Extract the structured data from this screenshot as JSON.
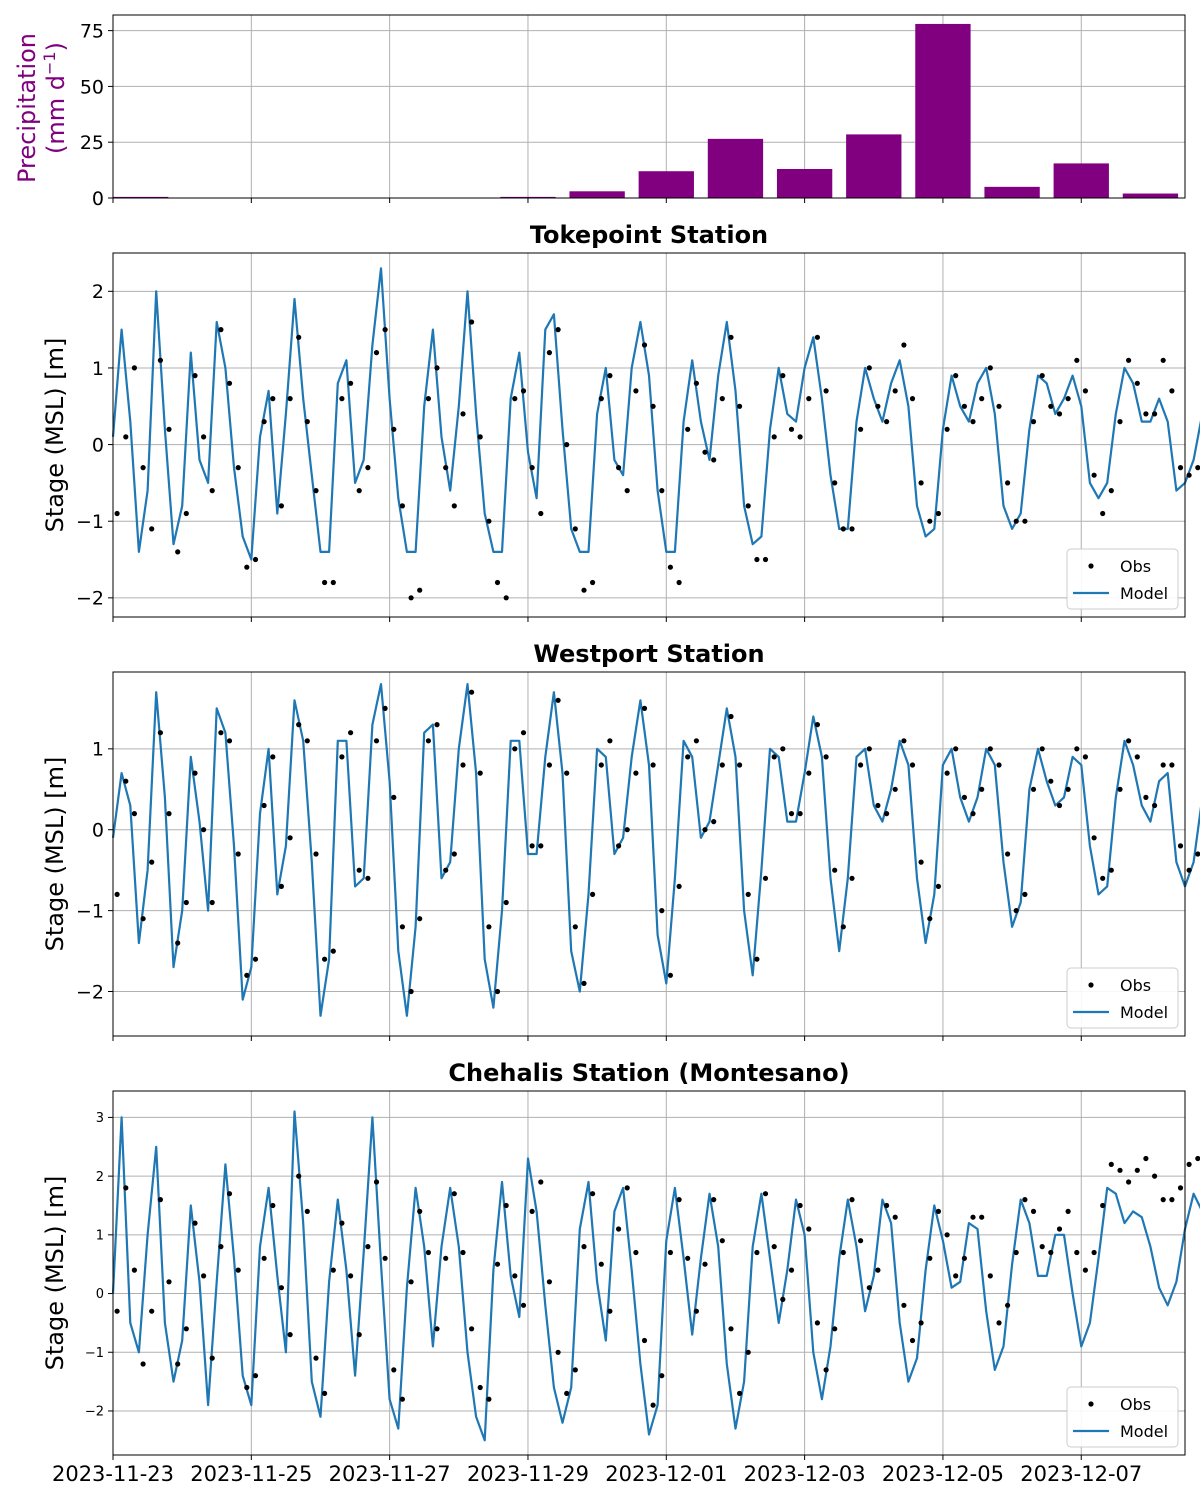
{
  "x_ticks": [
    "2023-11-23",
    "2023-11-25",
    "2023-11-27",
    "2023-11-29",
    "2023-12-01",
    "2023-12-03",
    "2023-12-05",
    "2023-12-07"
  ],
  "colors": {
    "precip": "#800080",
    "model": "#1f77b4",
    "obs": "#000000",
    "grid": "#b0b0b0"
  },
  "chart_data": [
    {
      "type": "bar",
      "title": "",
      "ylabel_main": "Precipitation",
      "ylabel_units": "(mm d",
      "ylabel_exp": "−1",
      "ylabel_close": ")",
      "ylim": [
        0,
        82
      ],
      "yticks": [
        0,
        25,
        50,
        75
      ],
      "ytick_labels": [
        "0",
        "25",
        "50",
        "75"
      ],
      "categories": [
        "2023-11-23",
        "2023-11-24",
        "2023-11-25",
        "2023-11-26",
        "2023-11-27",
        "2023-11-28",
        "2023-11-29",
        "2023-11-30",
        "2023-12-01",
        "2023-12-02",
        "2023-12-03",
        "2023-12-04",
        "2023-12-05",
        "2023-12-06",
        "2023-12-07",
        "2023-12-08"
      ],
      "values": [
        0.5,
        0,
        0,
        0,
        0,
        0,
        0.5,
        3,
        12,
        26.5,
        13,
        28.5,
        78,
        5,
        15.5,
        2
      ]
    },
    {
      "type": "line",
      "title": "Tokepoint Station",
      "ylabel": "Stage (MSL) [m]",
      "ylim": [
        -2.25,
        2.5
      ],
      "yticks": [
        -2,
        -1,
        0,
        1,
        2
      ],
      "ytick_labels": [
        "−2",
        "−1",
        "0",
        "1",
        "2"
      ],
      "legend": [
        "Obs",
        "Model"
      ],
      "legend_position": "lower right",
      "x_start": "2023-11-23 00:00",
      "x_step_hours": 3,
      "model": [
        0.1,
        1.5,
        0.3,
        -1.4,
        -0.6,
        2.0,
        0.2,
        -1.3,
        -0.8,
        1.2,
        -0.2,
        -0.5,
        1.6,
        1.0,
        -0.3,
        -1.2,
        -1.5,
        0.1,
        0.7,
        -0.9,
        0.4,
        1.9,
        0.6,
        -0.4,
        -1.4,
        -1.4,
        0.8,
        1.1,
        -0.5,
        -0.2,
        1.3,
        2.3,
        0.6,
        -0.7,
        -1.4,
        -1.4,
        0.5,
        1.5,
        0.1,
        -0.6,
        0.5,
        2.0,
        0.4,
        -0.9,
        -1.4,
        -1.4,
        0.6,
        1.2,
        -0.1,
        -0.7,
        1.5,
        1.7,
        0.2,
        -1.1,
        -1.4,
        -1.4,
        0.4,
        1.0,
        -0.2,
        -0.4,
        1.0,
        1.6,
        0.9,
        -0.6,
        -1.4,
        -1.4,
        0.3,
        1.1,
        0.3,
        -0.2,
        0.9,
        1.6,
        0.7,
        -0.8,
        -1.3,
        -1.2,
        0.2,
        1.0,
        0.4,
        0.3,
        1.0,
        1.4,
        0.6,
        -0.4,
        -1.1,
        -1.1,
        0.3,
        1.0,
        0.6,
        0.3,
        0.8,
        1.1,
        0.5,
        -0.8,
        -1.2,
        -1.1,
        0.2,
        0.9,
        0.5,
        0.3,
        0.8,
        1.0,
        0.4,
        -0.8,
        -1.1,
        -0.9,
        0.2,
        0.9,
        0.8,
        0.4,
        0.6,
        0.9,
        0.5,
        -0.5,
        -0.7,
        -0.5,
        0.4,
        1.0,
        0.8,
        0.3,
        0.3,
        0.6,
        0.3,
        -0.6,
        -0.5,
        -0.2,
        0.4,
        1.0,
        0.8,
        0.2,
        0.0,
        0.5,
        0.2,
        -0.5,
        -0.4,
        -0.1,
        0.4,
        1.1,
        0.8,
        0.1,
        0.0,
        0.5,
        0.1,
        -0.4,
        -0.4,
        0.0,
        0.5,
        1.2,
        0.9,
        0.1,
        -0.1,
        0.2,
        0.0,
        -0.6
      ],
      "obs": [
        -0.9,
        0.1,
        1.0,
        -0.3,
        -1.1,
        1.1,
        0.2,
        -1.4,
        -0.9,
        0.9,
        0.1,
        -0.6,
        1.5,
        0.8,
        -0.3,
        -1.6,
        -1.5,
        0.3,
        0.6,
        -0.8,
        0.6,
        1.4,
        0.3,
        -0.6,
        -1.8,
        -1.8,
        0.6,
        0.8,
        -0.6,
        -0.3,
        1.2,
        1.5,
        0.2,
        -0.8,
        -2.0,
        -1.9,
        0.6,
        1.0,
        -0.3,
        -0.8,
        0.4,
        1.6,
        0.1,
        -1.0,
        -1.8,
        -2.0,
        0.6,
        0.7,
        -0.3,
        -0.9,
        1.2,
        1.5,
        0.0,
        -1.1,
        -1.9,
        -1.8,
        0.6,
        0.9,
        -0.3,
        -0.6,
        0.7,
        1.3,
        0.5,
        -0.6,
        -1.6,
        -1.8,
        0.2,
        0.8,
        -0.1,
        -0.2,
        0.6,
        1.4,
        0.5,
        -0.8,
        -1.5,
        -1.5,
        0.1,
        0.9,
        0.2,
        0.1,
        0.6,
        1.4,
        0.7,
        -0.5,
        -1.1,
        -1.1,
        0.2,
        1.0,
        0.5,
        0.3,
        0.7,
        1.3,
        0.6,
        -0.5,
        -1.0,
        -0.9,
        0.2,
        0.9,
        0.5,
        0.3,
        0.6,
        1.0,
        0.5,
        -0.5,
        -1.0,
        -1.0,
        0.3,
        0.9,
        0.5,
        0.4,
        0.6,
        1.1,
        0.7,
        -0.4,
        -0.9,
        -0.6,
        0.3,
        1.1,
        0.8,
        0.4,
        0.4,
        1.1,
        0.7,
        -0.3,
        -0.4,
        -0.3,
        0.4,
        1.1,
        0.8,
        0.4,
        0.3,
        0.9,
        0.5,
        -0.3,
        -0.4,
        0.0,
        0.5,
        1.3,
        1.0,
        0.4,
        0.2,
        0.7,
        0.3,
        -0.2,
        -0.4,
        -0.2,
        0.5,
        1.3,
        1.0,
        0.3,
        0.1,
        0.5,
        0.3,
        -0.3
      ]
    },
    {
      "type": "line",
      "title": "Westport Station",
      "ylabel": "Stage (MSL) [m]",
      "ylim": [
        -2.55,
        1.95
      ],
      "yticks": [
        -2,
        -1,
        0,
        1
      ],
      "ytick_labels": [
        "−2",
        "−1",
        "0",
        "1"
      ],
      "legend": [
        "Obs",
        "Model"
      ],
      "legend_position": "lower right",
      "x_start": "2023-11-23 00:00",
      "x_step_hours": 3,
      "model": [
        -0.1,
        0.7,
        0.3,
        -1.4,
        -0.5,
        1.7,
        0.4,
        -1.7,
        -1.0,
        0.9,
        0.1,
        -1.0,
        1.5,
        1.2,
        -0.2,
        -2.1,
        -1.7,
        0.2,
        1.0,
        -0.8,
        -0.2,
        1.6,
        1.1,
        -0.4,
        -2.3,
        -1.6,
        1.1,
        1.1,
        -0.7,
        -0.6,
        1.3,
        1.8,
        0.6,
        -1.5,
        -2.3,
        -1.2,
        1.2,
        1.3,
        -0.6,
        -0.4,
        1.0,
        1.8,
        0.7,
        -1.6,
        -2.2,
        -1.0,
        1.1,
        1.1,
        -0.3,
        -0.3,
        0.9,
        1.7,
        0.7,
        -1.5,
        -2.0,
        -0.8,
        1.0,
        0.9,
        -0.3,
        -0.1,
        0.9,
        1.6,
        0.8,
        -1.3,
        -1.9,
        -0.6,
        1.1,
        0.9,
        -0.1,
        0.1,
        0.8,
        1.5,
        0.9,
        -1.0,
        -1.8,
        -0.5,
        1.0,
        0.9,
        0.1,
        0.1,
        0.7,
        1.4,
        0.9,
        -0.6,
        -1.5,
        -0.6,
        0.9,
        1.0,
        0.3,
        0.1,
        0.5,
        1.1,
        0.8,
        -0.6,
        -1.4,
        -0.8,
        0.8,
        1.0,
        0.4,
        0.1,
        0.4,
        1.0,
        0.8,
        -0.4,
        -1.2,
        -0.9,
        0.5,
        1.0,
        0.6,
        0.3,
        0.4,
        0.9,
        0.8,
        -0.2,
        -0.8,
        -0.7,
        0.4,
        1.1,
        0.8,
        0.3,
        0.1,
        0.6,
        0.7,
        -0.4,
        -0.7,
        -0.4,
        0.4,
        1.1,
        0.9,
        0.3,
        -0.1,
        0.4,
        0.5,
        -0.4,
        -0.5,
        -0.2,
        0.4,
        1.1,
        0.9,
        0.3,
        -0.1,
        0.3,
        0.4,
        -0.4,
        -0.7,
        -0.1,
        0.4,
        1.1,
        0.9,
        0.2,
        -0.3,
        0.2,
        0.4,
        -0.6
      ],
      "obs": [
        -0.8,
        0.6,
        0.2,
        -1.1,
        -0.4,
        1.2,
        0.2,
        -1.4,
        -0.9,
        0.7,
        0.0,
        -0.9,
        1.2,
        1.1,
        -0.3,
        -1.8,
        -1.6,
        0.3,
        0.9,
        -0.7,
        -0.1,
        1.3,
        1.1,
        -0.3,
        -1.6,
        -1.5,
        0.9,
        1.2,
        -0.5,
        -0.6,
        1.1,
        1.5,
        0.4,
        -1.2,
        -2.0,
        -1.1,
        1.1,
        1.3,
        -0.5,
        -0.3,
        0.8,
        1.7,
        0.7,
        -1.2,
        -2.0,
        -0.9,
        1.0,
        1.2,
        -0.2,
        -0.2,
        0.8,
        1.6,
        0.7,
        -1.2,
        -1.9,
        -0.8,
        0.8,
        1.1,
        -0.2,
        0.0,
        0.7,
        1.5,
        0.8,
        -1.0,
        -1.8,
        -0.7,
        0.9,
        1.1,
        0.0,
        0.1,
        0.8,
        1.4,
        0.8,
        -0.8,
        -1.6,
        -0.6,
        0.9,
        1.0,
        0.2,
        0.2,
        0.7,
        1.3,
        0.9,
        -0.5,
        -1.2,
        -0.6,
        0.8,
        1.0,
        0.3,
        0.2,
        0.5,
        1.1,
        0.8,
        -0.4,
        -1.1,
        -0.7,
        0.7,
        1.0,
        0.4,
        0.2,
        0.5,
        1.0,
        0.8,
        -0.3,
        -1.0,
        -0.8,
        0.5,
        1.0,
        0.6,
        0.3,
        0.5,
        1.0,
        0.9,
        -0.1,
        -0.6,
        -0.5,
        0.5,
        1.1,
        0.9,
        0.4,
        0.3,
        0.8,
        0.8,
        -0.2,
        -0.5,
        -0.3,
        0.5,
        1.1,
        0.9,
        0.4,
        0.1,
        0.6,
        0.6,
        -0.3,
        -0.4,
        -0.1,
        0.5,
        1.2,
        1.0,
        0.4,
        0.1,
        0.5,
        0.6,
        -0.3,
        -0.5,
        0.0,
        0.5,
        1.2,
        1.0,
        0.3,
        -0.1,
        0.4,
        0.6,
        -0.4
      ]
    },
    {
      "type": "line",
      "title": "Chehalis Station (Montesano)",
      "ylabel": "Stage (MSL) [m]",
      "ylim": [
        -2.75,
        3.45
      ],
      "yticks": [
        -2,
        -1,
        0,
        1,
        2,
        3
      ],
      "ytick_labels": [
        "−2",
        "−1",
        "0",
        "1",
        "2",
        "3"
      ],
      "legend": [
        "Obs",
        "Model"
      ],
      "legend_position": "lower right",
      "x_start": "2023-11-23 00:00",
      "x_step_hours": 3,
      "model": [
        0.0,
        3.0,
        -0.5,
        -1.0,
        1.0,
        2.5,
        -0.5,
        -1.5,
        -0.8,
        1.5,
        0.2,
        -1.9,
        0.2,
        2.2,
        0.6,
        -1.4,
        -1.9,
        0.8,
        1.8,
        0.3,
        -1.0,
        3.1,
        1.2,
        -1.5,
        -2.1,
        0.2,
        1.6,
        0.4,
        -1.4,
        0.7,
        3.0,
        0.5,
        -1.8,
        -2.3,
        0.1,
        1.8,
        0.8,
        -0.9,
        0.8,
        1.8,
        0.8,
        -1.0,
        -2.1,
        -2.5,
        0.4,
        1.9,
        0.3,
        -0.4,
        2.3,
        1.4,
        -0.2,
        -1.6,
        -2.2,
        -1.6,
        1.1,
        1.9,
        0.2,
        -0.8,
        1.4,
        1.8,
        0.4,
        -1.2,
        -2.4,
        -1.9,
        0.9,
        1.8,
        0.6,
        -0.7,
        0.6,
        1.7,
        0.8,
        -1.2,
        -2.3,
        -1.5,
        0.8,
        1.7,
        0.6,
        -0.5,
        0.4,
        1.6,
        1.0,
        -1.0,
        -1.8,
        -0.9,
        0.6,
        1.6,
        0.8,
        -0.3,
        0.3,
        1.6,
        1.2,
        -0.5,
        -1.5,
        -1.1,
        0.4,
        1.5,
        0.9,
        0.1,
        0.2,
        1.2,
        1.1,
        -0.3,
        -1.3,
        -0.9,
        0.5,
        1.6,
        1.2,
        0.3,
        0.3,
        1.0,
        1.0,
        0.0,
        -0.9,
        -0.5,
        0.6,
        1.8,
        1.7,
        1.2,
        1.4,
        1.3,
        0.8,
        0.1,
        -0.2,
        0.2,
        1.1,
        1.7,
        1.4,
        0.5,
        0.3,
        0.8,
        0.9,
        0.1,
        -0.1,
        0.3,
        1.0,
        1.7,
        1.3,
        0.3,
        0.0,
        0.5,
        1.0,
        0.2,
        -0.1,
        0.1,
        0.8,
        1.6,
        1.1,
        0.2
      ],
      "obs": [
        -0.3,
        1.8,
        0.4,
        -1.2,
        -0.3,
        1.6,
        0.2,
        -1.2,
        -0.6,
        1.2,
        0.3,
        -1.1,
        0.8,
        1.7,
        0.4,
        -1.6,
        -1.4,
        0.6,
        1.5,
        0.1,
        -0.7,
        2.0,
        1.4,
        -1.1,
        -1.7,
        0.4,
        1.2,
        0.3,
        -0.7,
        0.8,
        1.9,
        0.6,
        -1.3,
        -1.8,
        0.2,
        1.4,
        0.7,
        -0.6,
        0.6,
        1.7,
        0.7,
        -0.6,
        -1.6,
        -1.8,
        0.5,
        1.5,
        0.3,
        -0.2,
        1.4,
        1.9,
        0.2,
        -1.0,
        -1.7,
        -1.3,
        0.8,
        1.7,
        0.5,
        -0.3,
        1.1,
        1.8,
        0.7,
        -0.8,
        -1.9,
        -1.4,
        0.7,
        1.6,
        0.6,
        -0.3,
        0.5,
        1.6,
        0.9,
        -0.6,
        -1.7,
        -1.0,
        0.7,
        1.7,
        0.8,
        -0.1,
        0.4,
        1.5,
        1.1,
        -0.5,
        -1.3,
        -0.6,
        0.7,
        1.6,
        0.9,
        0.1,
        0.4,
        1.5,
        1.3,
        -0.2,
        -0.8,
        -0.5,
        0.6,
        1.4,
        1.0,
        0.3,
        0.6,
        1.3,
        1.3,
        0.3,
        -0.5,
        -0.2,
        0.7,
        1.6,
        1.4,
        0.8,
        0.7,
        1.1,
        1.4,
        0.7,
        0.4,
        0.7,
        1.5,
        2.2,
        2.1,
        1.9,
        2.1,
        2.3,
        2.0,
        1.6,
        1.6,
        1.8,
        2.2,
        2.3,
        1.9,
        1.5,
        1.5,
        1.8,
        1.8,
        1.4,
        1.2,
        1.4,
        1.9,
        2.2,
        1.9,
        1.4,
        1.2,
        1.6,
        1.8,
        1.6,
        1.4,
        1.5,
        1.8,
        2.1,
        1.8,
        1.5
      ]
    }
  ]
}
